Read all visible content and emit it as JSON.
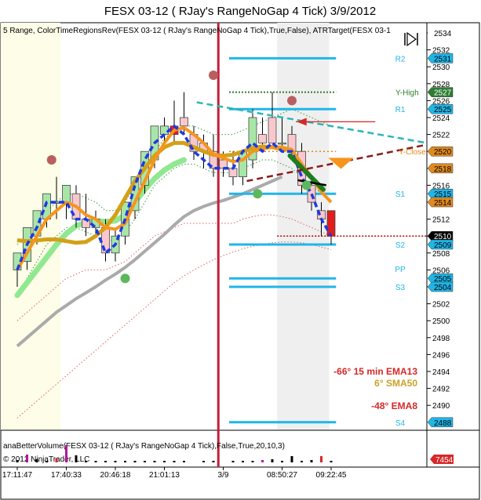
{
  "window": {
    "title": "FESX 03-12 ( RJay's RangeNoGap  4 Tick)  3/9/2012"
  },
  "indicator_label": "5 Range, ColorTimeRegionsRev(FESX 03-12 ( RJay's RangeNoGap  4 Tick),True,False), ATRTarget(FESX 03-1",
  "volume_panel": {
    "label": "anaBetterVolume(FESX 03-12 ( RJay's RangeNoGap  4 Tick),False,True,20,10,3)",
    "copyright": "© 2012 NinjaTrader, LLC",
    "badge": "7454"
  },
  "colors": {
    "level_line": "#1fb6e8",
    "vline": "#c41e3a",
    "ema_blue": "#1e3ae0",
    "orange": "#f7941d",
    "green_thick": "#90e890",
    "gray": "#aaaaaa",
    "gold": "#d4a017",
    "teal": "#2bb5b5",
    "brown": "#8b1a1a",
    "region_yellow": "#fdfde8",
    "region_gray": "#efefef"
  },
  "chart_data": {
    "type": "candlestick",
    "title": "FESX 03-12 ( RJay's RangeNoGap  4 Tick)  3/9/2012",
    "ylim": [
      2487,
      2535
    ],
    "price_axis_ticks": [
      2490,
      2492,
      2494,
      2496,
      2498,
      2500,
      2502,
      2504,
      2506,
      2508,
      2510,
      2512,
      2514,
      2516,
      2518,
      2520,
      2522,
      2524,
      2526,
      2528,
      2530,
      2532,
      2534
    ],
    "time_axis_labels": [
      {
        "bar": 0,
        "label": "17:11:47"
      },
      {
        "bar": 5,
        "label": "17:40:33"
      },
      {
        "bar": 10,
        "label": "20:46:18"
      },
      {
        "bar": 15,
        "label": "21:01:13"
      },
      {
        "bar": 21,
        "label": "3/9"
      },
      {
        "bar": 27,
        "label": "08:50:27"
      },
      {
        "bar": 32,
        "label": "09:22:45"
      }
    ],
    "bars": [
      {
        "o": 2506,
        "h": 2508,
        "l": 2504,
        "c": 2508
      },
      {
        "o": 2507,
        "h": 2511,
        "l": 2506,
        "c": 2511
      },
      {
        "o": 2510,
        "h": 2513,
        "l": 2509,
        "c": 2513
      },
      {
        "o": 2512,
        "h": 2515,
        "l": 2511,
        "c": 2515
      },
      {
        "o": 2514,
        "h": 2517,
        "l": 2512,
        "c": 2514
      },
      {
        "o": 2514,
        "h": 2516,
        "l": 2512,
        "c": 2516
      },
      {
        "o": 2515,
        "h": 2516,
        "l": 2511,
        "c": 2512
      },
      {
        "o": 2512,
        "h": 2515,
        "l": 2510,
        "c": 2511
      },
      {
        "o": 2511,
        "h": 2513,
        "l": 2510,
        "c": 2512
      },
      {
        "o": 2511,
        "h": 2512,
        "l": 2507,
        "c": 2508
      },
      {
        "o": 2508,
        "h": 2511,
        "l": 2507,
        "c": 2510
      },
      {
        "o": 2510,
        "h": 2514,
        "l": 2509,
        "c": 2514
      },
      {
        "o": 2513,
        "h": 2517,
        "l": 2512,
        "c": 2517
      },
      {
        "o": 2516,
        "h": 2520,
        "l": 2515,
        "c": 2520
      },
      {
        "o": 2519,
        "h": 2523,
        "l": 2518,
        "c": 2523
      },
      {
        "o": 2522,
        "h": 2524,
        "l": 2521,
        "c": 2523
      },
      {
        "o": 2522,
        "h": 2526,
        "l": 2521,
        "c": 2523
      },
      {
        "o": 2524,
        "h": 2527,
        "l": 2522,
        "c": 2523
      },
      {
        "o": 2522,
        "h": 2523,
        "l": 2519,
        "c": 2520
      },
      {
        "o": 2521,
        "h": 2522,
        "l": 2518,
        "c": 2520
      },
      {
        "o": 2520,
        "h": 2522,
        "l": 2517,
        "c": 2518
      },
      {
        "o": 2519,
        "h": 2520,
        "l": 2517,
        "c": 2518
      },
      {
        "o": 2518,
        "h": 2520,
        "l": 2516,
        "c": 2517
      },
      {
        "o": 2517,
        "h": 2520,
        "l": 2516,
        "c": 2520
      },
      {
        "o": 2519,
        "h": 2525,
        "l": 2518,
        "c": 2524
      },
      {
        "o": 2522,
        "h": 2524,
        "l": 2520,
        "c": 2521
      },
      {
        "o": 2524,
        "h": 2527,
        "l": 2521,
        "c": 2521
      },
      {
        "o": 2521,
        "h": 2524,
        "l": 2520,
        "c": 2521
      },
      {
        "o": 2522,
        "h": 2523,
        "l": 2519,
        "c": 2520
      },
      {
        "o": 2520,
        "h": 2521,
        "l": 2515,
        "c": 2516
      },
      {
        "o": 2516,
        "h": 2517,
        "l": 2513,
        "c": 2514
      },
      {
        "o": 2513,
        "h": 2514,
        "l": 2510,
        "c": 2512
      },
      {
        "o": 2513,
        "h": 2513,
        "l": 2509,
        "c": 2510
      }
    ],
    "levels": [
      {
        "name": "R2",
        "price": 2531
      },
      {
        "name": "R1",
        "price": 2525
      },
      {
        "name": "S1",
        "price": 2515
      },
      {
        "name": "S2",
        "price": 2509
      },
      {
        "name": "PP",
        "price": 2505
      },
      {
        "name": "S3",
        "price": 2504
      },
      {
        "name": "S4",
        "price": 2488
      }
    ],
    "level_labels": {
      "y_high": "Y-High",
      "y_close": "Y-Close"
    },
    "y_high_price": 2527,
    "y_close_price": 2520,
    "price_badges": [
      {
        "label": "2534",
        "price": 2534,
        "bg": "#ffffff",
        "fg": "#000000"
      },
      {
        "label": "2531",
        "price": 2531,
        "bg": "#1fb6e8",
        "fg": "#000000"
      },
      {
        "label": "2527",
        "price": 2527,
        "bg": "#2e7d32",
        "fg": "#ffffff"
      },
      {
        "label": "2525",
        "price": 2525,
        "bg": "#1fb6e8",
        "fg": "#000000"
      },
      {
        "label": "2520",
        "price": 2520,
        "bg": "#e08a1e",
        "fg": "#000000"
      },
      {
        "label": "2518",
        "price": 2518,
        "bg": "#e08a1e",
        "fg": "#000000"
      },
      {
        "label": "2515",
        "price": 2515,
        "bg": "#1fb6e8",
        "fg": "#000000"
      },
      {
        "label": "2514",
        "price": 2514,
        "bg": "#e08a1e",
        "fg": "#000000"
      },
      {
        "label": "2510",
        "price": 2510,
        "bg": "#000000",
        "fg": "#ffffff"
      },
      {
        "label": "2509",
        "price": 2509,
        "bg": "#1fb6e8",
        "fg": "#000000"
      },
      {
        "label": "2505",
        "price": 2505,
        "bg": "#1fb6e8",
        "fg": "#000000"
      },
      {
        "label": "2504",
        "price": 2504,
        "bg": "#1fb6e8",
        "fg": "#000000"
      },
      {
        "label": "2488",
        "price": 2488,
        "bg": "#1fb6e8",
        "fg": "#000000"
      }
    ],
    "series": [
      {
        "key": "ema_fast",
        "values": [
          2506,
          2509,
          2511,
          2514,
          2514,
          2514,
          2512,
          2512,
          2511,
          2508,
          2509,
          2512,
          2516,
          2519,
          2521,
          2522,
          2523,
          2522,
          2520,
          2519,
          2518,
          2518,
          2518,
          2520,
          2521,
          2520,
          2521,
          2520,
          2520,
          2517,
          2515,
          2512,
          2510
        ]
      },
      {
        "key": "orange",
        "values": [
          2506,
          2508,
          2510,
          2512,
          2513,
          2514,
          2513.5,
          2512.5,
          2512,
          2511,
          2510.8,
          2511.5,
          2514,
          2516.5,
          2519,
          2521,
          2522.5,
          2522.8,
          2522,
          2521,
          2519.7,
          2519.2,
          2518.8,
          2519,
          2520,
          2520.3,
          2520.5,
          2520.5,
          2520.2,
          2518.5,
          2517,
          2515.2,
          2514
        ]
      },
      {
        "key": "green_thick",
        "values": [
          2503,
          2504.5,
          2506,
          2507.5,
          2509,
          2510.3,
          2511.2,
          2511.6,
          2511.8,
          2511.7,
          2511.8,
          2512.5,
          2514,
          2515.5,
          2516.8,
          2517.8,
          2518.5,
          2519
        ]
      },
      {
        "key": "gray",
        "values": [
          2497,
          2498,
          2499,
          2500,
          2501,
          2501.8,
          2502.6,
          2503.3,
          2504,
          2504.8,
          2505.5,
          2506.3,
          2507.2,
          2508.2,
          2509.2,
          2510.2,
          2511.3,
          2512.3,
          2513,
          2513.5,
          2513.9,
          2514.2,
          2514.6,
          2515,
          2515.5,
          2516,
          2516.5,
          2517
        ]
      },
      {
        "key": "gold",
        "values": [
          2509.5,
          2509.4,
          2509.5,
          2509.6,
          2509.6,
          2509.4,
          2509.2,
          2509.3,
          2510,
          2511,
          2512.5,
          2514.5,
          2516.5,
          2518,
          2519.5,
          2520.5,
          2521,
          2521,
          2520.5,
          2520,
          2519.6,
          2519.5,
          2519.6,
          2520,
          2520.4,
          2520.6,
          2520.5,
          2520.3,
          2520.2
        ]
      },
      {
        "key": "green_dotted_upper",
        "values": [
          2509,
          2510,
          2512,
          2513,
          2514,
          2515,
          2515,
          2514.5,
          2514,
          2513,
          2513,
          2514,
          2516,
          2518,
          2520,
          2521.5,
          2522.5,
          2523,
          2523,
          2522.5,
          2522,
          2522,
          2522,
          2522.5,
          2523,
          2523.5,
          2524,
          2524.5,
          2525,
          2524.5,
          2524,
          2523.5,
          2523
        ]
      },
      {
        "key": "green_dotted_lower",
        "values": [
          2503,
          2505,
          2507,
          2509,
          2510,
          2511,
          2511,
          2510.5,
          2510,
          2509.5,
          2509.5,
          2510.5,
          2512,
          2514,
          2516,
          2517,
          2518,
          2518.5,
          2518.5,
          2518,
          2517.5,
          2517.5,
          2517.5,
          2518,
          2518.5,
          2519,
          2519,
          2518.5,
          2518,
          2517,
          2516,
          2515,
          2514
        ]
      },
      {
        "key": "red_dotted_upper",
        "values": [
          2500,
          2501,
          2502,
          2503,
          2504,
          2505,
          2505.5,
          2506,
          2506,
          2506,
          2506.5,
          2507,
          2508,
          2509,
          2510,
          2510.5,
          2511,
          2511.5,
          2511.5,
          2511.5,
          2511.5,
          2511.5,
          2511.5,
          2512,
          2512.3,
          2512.5,
          2512.5,
          2512.3,
          2512,
          2511.5,
          2511,
          2510.5,
          2510
        ]
      },
      {
        "key": "red_dotted_lower",
        "values": [
          2488.5,
          2489.5,
          2490.5,
          2491.5,
          2492.5,
          2493.5,
          2494.5,
          2495.5,
          2496.5,
          2497.5,
          2498.5,
          2499.5,
          2500.5,
          2501.5,
          2502.5,
          2503.5,
          2504.5,
          2505.3,
          2506,
          2506.6,
          2507.2,
          2507.7,
          2508.1,
          2508.5,
          2508.8,
          2509,
          2509.2,
          2509.3,
          2509.3,
          2509.2,
          2509,
          2508.7,
          2508.4
        ]
      }
    ],
    "dots": [
      {
        "bar": 3.5,
        "price": 2519,
        "color": "#b86060"
      },
      {
        "bar": 11,
        "price": 2505,
        "color": "#5cb85c"
      },
      {
        "bar": 20,
        "price": 2529,
        "color": "#b86060"
      },
      {
        "bar": 24.5,
        "price": 2515,
        "color": "#5cb85c"
      },
      {
        "bar": 28,
        "price": 2526,
        "color": "#b86060"
      },
      {
        "bar": 29.5,
        "price": 2516,
        "color": "#5cb85c"
      }
    ],
    "annotations": [
      {
        "text": "-66° 15 min EMA13",
        "color": "#d62828"
      },
      {
        "text": "6° SMA50",
        "color": "#c9a227"
      },
      {
        "text": "-48° EMA8",
        "color": "#d62828"
      }
    ],
    "volume_bars": [
      {
        "bar": 0,
        "v": 3,
        "color": "#000"
      },
      {
        "bar": 1,
        "v": 10,
        "color": "#b0179c"
      },
      {
        "bar": 2,
        "v": 4,
        "color": "#000"
      },
      {
        "bar": 3,
        "v": 2,
        "color": "#000"
      },
      {
        "bar": 4,
        "v": 5,
        "color": "#d62828"
      },
      {
        "bar": 5,
        "v": 22,
        "color": "#b0179c"
      },
      {
        "bar": 6,
        "v": 9,
        "color": "#000"
      },
      {
        "bar": 7,
        "v": 2,
        "color": "#000"
      },
      {
        "bar": 8,
        "v": 2,
        "color": "#000"
      },
      {
        "bar": 9,
        "v": 2,
        "color": "#000"
      },
      {
        "bar": 10,
        "v": 2,
        "color": "#000"
      },
      {
        "bar": 11,
        "v": 2,
        "color": "#000"
      },
      {
        "bar": 12,
        "v": 2,
        "color": "#000"
      },
      {
        "bar": 13,
        "v": 2,
        "color": "#000"
      },
      {
        "bar": 14,
        "v": 2,
        "color": "#000"
      },
      {
        "bar": 15,
        "v": 2,
        "color": "#000"
      },
      {
        "bar": 16,
        "v": 2,
        "color": "#000"
      },
      {
        "bar": 17,
        "v": 2,
        "color": "#000"
      },
      {
        "bar": 19,
        "v": 2,
        "color": "#000"
      },
      {
        "bar": 20,
        "v": 2,
        "color": "#000"
      },
      {
        "bar": 22,
        "v": 2,
        "color": "#000"
      },
      {
        "bar": 23,
        "v": 2,
        "color": "#000"
      },
      {
        "bar": 24,
        "v": 2,
        "color": "#000"
      },
      {
        "bar": 25,
        "v": 3,
        "color": "#b0179c"
      },
      {
        "bar": 26,
        "v": 4,
        "color": "#000"
      },
      {
        "bar": 27,
        "v": 2,
        "color": "#000"
      },
      {
        "bar": 28,
        "v": 8,
        "color": "#000"
      },
      {
        "bar": 29,
        "v": 2,
        "color": "#000"
      },
      {
        "bar": 30,
        "v": 3,
        "color": "#000"
      },
      {
        "bar": 31,
        "v": 8,
        "color": "#d62828"
      },
      {
        "bar": 32,
        "v": 2,
        "color": "#000"
      }
    ]
  }
}
